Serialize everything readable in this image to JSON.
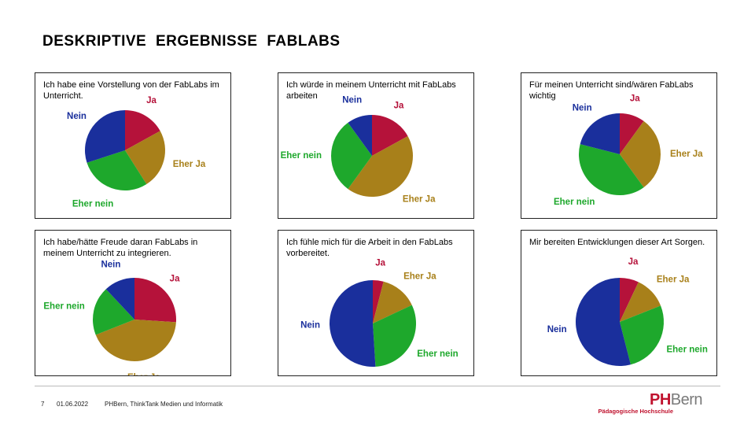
{
  "header": {
    "title": "DESKRIPTIVE  ERGEBNISSE  FABLABS"
  },
  "chart_data": [
    {
      "type": "pie",
      "title": "Ich habe eine Vorstellung von der FabLabs im Unterricht.",
      "categories": [
        "Ja",
        "Eher Ja",
        "Eher nein",
        "Nein"
      ],
      "values": [
        17,
        24,
        29,
        30
      ],
      "colors": [
        "#b5123a",
        "#a8801a",
        "#1ea82c",
        "#1a2f9c"
      ]
    },
    {
      "type": "pie",
      "title": "Ich würde in meinem Unterricht mit FabLabs arbeiten",
      "categories": [
        "Ja",
        "Eher Ja",
        "Eher nein",
        "Nein"
      ],
      "values": [
        17,
        43,
        30,
        10
      ],
      "colors": [
        "#b5123a",
        "#a8801a",
        "#1ea82c",
        "#1a2f9c"
      ]
    },
    {
      "type": "pie",
      "title": "Für meinen Unterricht sind/wären FabLabs wichtig",
      "categories": [
        "Ja",
        "Eher Ja",
        "Eher nein",
        "Nein"
      ],
      "values": [
        10,
        30,
        39,
        21
      ],
      "colors": [
        "#b5123a",
        "#a8801a",
        "#1ea82c",
        "#1a2f9c"
      ]
    },
    {
      "type": "pie",
      "title": "Ich habe/hätte Freude daran FabLabs in meinem Unterricht zu integrieren.",
      "categories": [
        "Ja",
        "Eher Ja",
        "Eher nein",
        "Nein"
      ],
      "values": [
        26,
        43,
        19,
        12
      ],
      "colors": [
        "#b5123a",
        "#a8801a",
        "#1ea82c",
        "#1a2f9c"
      ]
    },
    {
      "type": "pie",
      "title": "Ich fühle mich für die Arbeit in den FabLabs vorbereitet.",
      "categories": [
        "Ja",
        "Eher Ja",
        "Eher nein",
        "Nein"
      ],
      "values": [
        4,
        14,
        31,
        51
      ],
      "colors": [
        "#b5123a",
        "#a8801a",
        "#1ea82c",
        "#1a2f9c"
      ]
    },
    {
      "type": "pie",
      "title": "Mir bereiten Entwicklungen dieser Art Sorgen.",
      "categories": [
        "Ja",
        "Eher Ja",
        "Eher nein",
        "Nein"
      ],
      "values": [
        7,
        12,
        27,
        54
      ],
      "colors": [
        "#b5123a",
        "#a8801a",
        "#1ea82c",
        "#1a2f9c"
      ]
    }
  ],
  "footer": {
    "page": "7",
    "date": "01.06.2022",
    "text": "PHBern, ThinkTank Medien und Informatik",
    "logo_ph": "PH",
    "logo_bern": "Bern",
    "logo_sub": "Pädagogische Hochschule"
  }
}
